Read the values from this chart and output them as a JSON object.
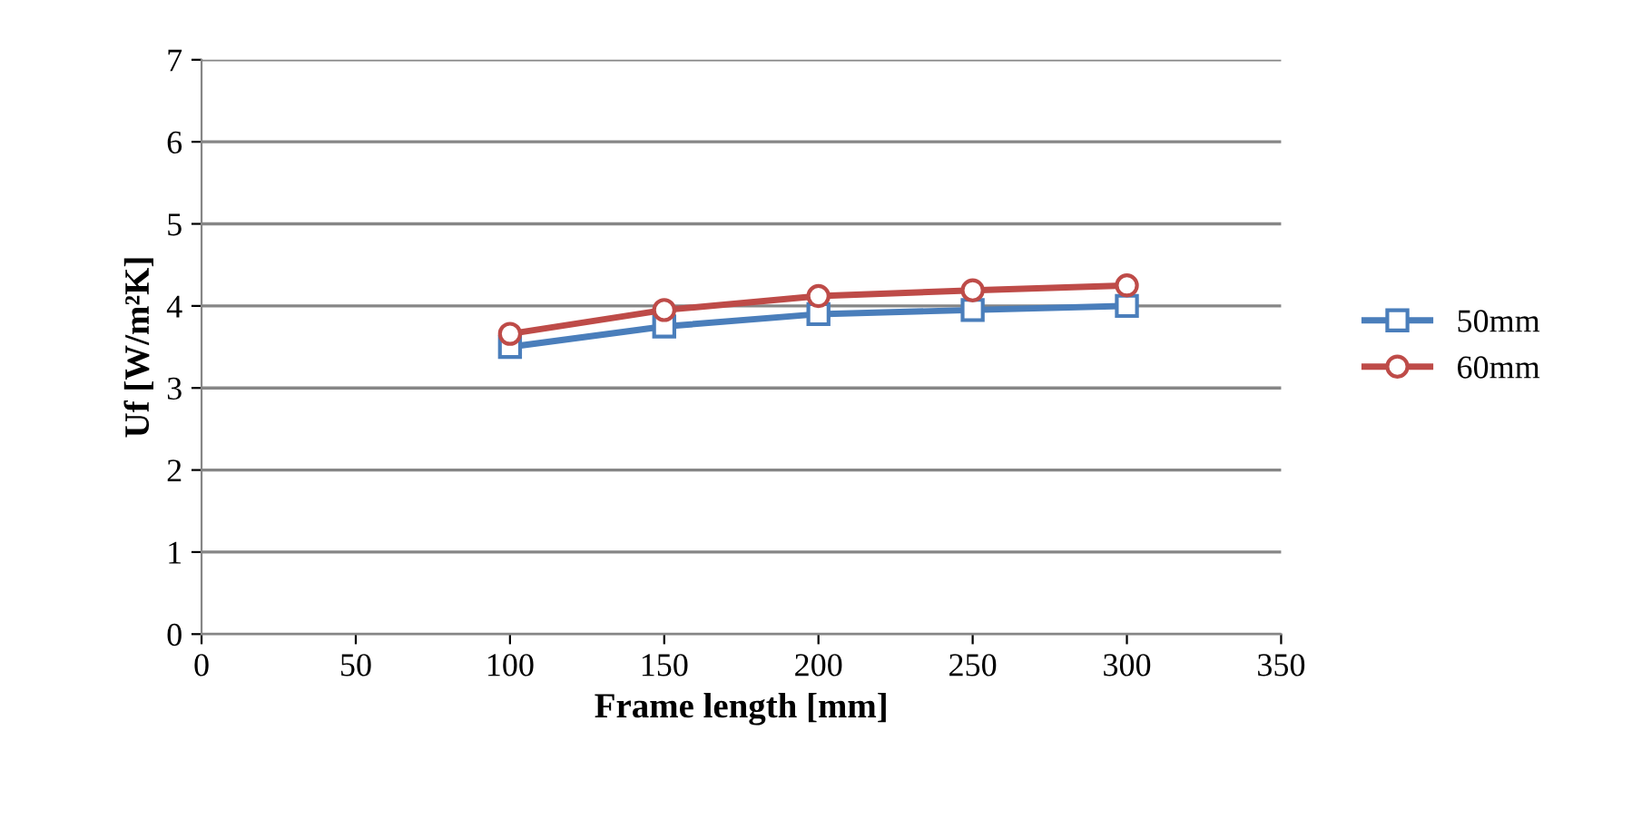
{
  "chart_data": {
    "type": "line",
    "xlabel": "Frame length [mm]",
    "ylabel": "Uf [W/m²K]",
    "x": [
      100,
      150,
      200,
      250,
      300
    ],
    "series": [
      {
        "name": "50mm",
        "color": "#4a7ebb",
        "values": [
          3.5,
          3.75,
          3.9,
          3.95,
          4.0
        ],
        "marker": "square"
      },
      {
        "name": "60mm",
        "color": "#be4b48",
        "values": [
          3.66,
          3.95,
          4.12,
          4.19,
          4.25
        ],
        "marker": "circle"
      }
    ],
    "xlim": [
      0,
      350
    ],
    "xticks": [
      0,
      50,
      100,
      150,
      200,
      250,
      300,
      350
    ],
    "ylim": [
      0,
      7
    ],
    "yticks": [
      0,
      1,
      2,
      3,
      4,
      5,
      6,
      7
    ],
    "grid": "y",
    "legend": "right",
    "line_style": "solid"
  }
}
